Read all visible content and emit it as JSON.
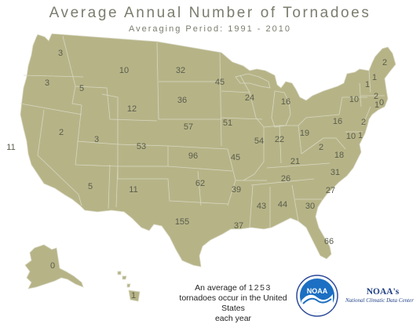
{
  "title": "Average Annual Number of Tornadoes",
  "subtitle": "Averaging Period:  1991 - 2010",
  "footer": {
    "line1_prefix": "An average of",
    "total": "1253",
    "line2": "tornadoes occur in the United States",
    "line3": "each year"
  },
  "logo": {
    "emblem_text": "NOAA",
    "name": "NOAA's",
    "center": "National Climatic Data Center"
  },
  "colors": {
    "land": "#b6b487",
    "border": "#d9d8c4",
    "label": "#5a5c4c",
    "title": "#7a7d6e",
    "noaa_blue": "#1f3f86"
  },
  "states": [
    {
      "code": "WA",
      "value": "3"
    },
    {
      "code": "OR",
      "value": "3"
    },
    {
      "code": "ID",
      "value": "5"
    },
    {
      "code": "MT",
      "value": "10"
    },
    {
      "code": "ND",
      "value": "32"
    },
    {
      "code": "MN",
      "value": "45"
    },
    {
      "code": "WI",
      "value": "24"
    },
    {
      "code": "MI",
      "value": "16"
    },
    {
      "code": "NY",
      "value": "10"
    },
    {
      "code": "ME",
      "value": "2"
    },
    {
      "code": "NH",
      "value": "1"
    },
    {
      "code": "VT",
      "value": "1"
    },
    {
      "code": "MA",
      "value": "2"
    },
    {
      "code": "RI",
      "value": "0"
    },
    {
      "code": "CT",
      "value": "1"
    },
    {
      "code": "PA",
      "value": "16"
    },
    {
      "code": "NJ",
      "value": "2"
    },
    {
      "code": "DE",
      "value": "1"
    },
    {
      "code": "MD",
      "value": "10"
    },
    {
      "code": "WY",
      "value": "12"
    },
    {
      "code": "SD",
      "value": "36"
    },
    {
      "code": "IA",
      "value": "51"
    },
    {
      "code": "NE",
      "value": "57"
    },
    {
      "code": "NV",
      "value": "2"
    },
    {
      "code": "CA",
      "value": "11"
    },
    {
      "code": "UT",
      "value": "3"
    },
    {
      "code": "CO",
      "value": "53"
    },
    {
      "code": "KS",
      "value": "96"
    },
    {
      "code": "MO",
      "value": "45"
    },
    {
      "code": "IL",
      "value": "54"
    },
    {
      "code": "IN",
      "value": "22"
    },
    {
      "code": "OH",
      "value": "19"
    },
    {
      "code": "WV",
      "value": "2"
    },
    {
      "code": "VA",
      "value": "18"
    },
    {
      "code": "KY",
      "value": "21"
    },
    {
      "code": "TN",
      "value": "26"
    },
    {
      "code": "NC",
      "value": "31"
    },
    {
      "code": "SC",
      "value": "27"
    },
    {
      "code": "AZ",
      "value": "5"
    },
    {
      "code": "NM",
      "value": "11"
    },
    {
      "code": "OK",
      "value": "62"
    },
    {
      "code": "AR",
      "value": "39"
    },
    {
      "code": "MS",
      "value": "43"
    },
    {
      "code": "AL",
      "value": "44"
    },
    {
      "code": "GA",
      "value": "30"
    },
    {
      "code": "TX",
      "value": "155"
    },
    {
      "code": "LA",
      "value": "37"
    },
    {
      "code": "FL",
      "value": "66"
    },
    {
      "code": "AK",
      "value": "0"
    },
    {
      "code": "HI",
      "value": "1"
    }
  ]
}
